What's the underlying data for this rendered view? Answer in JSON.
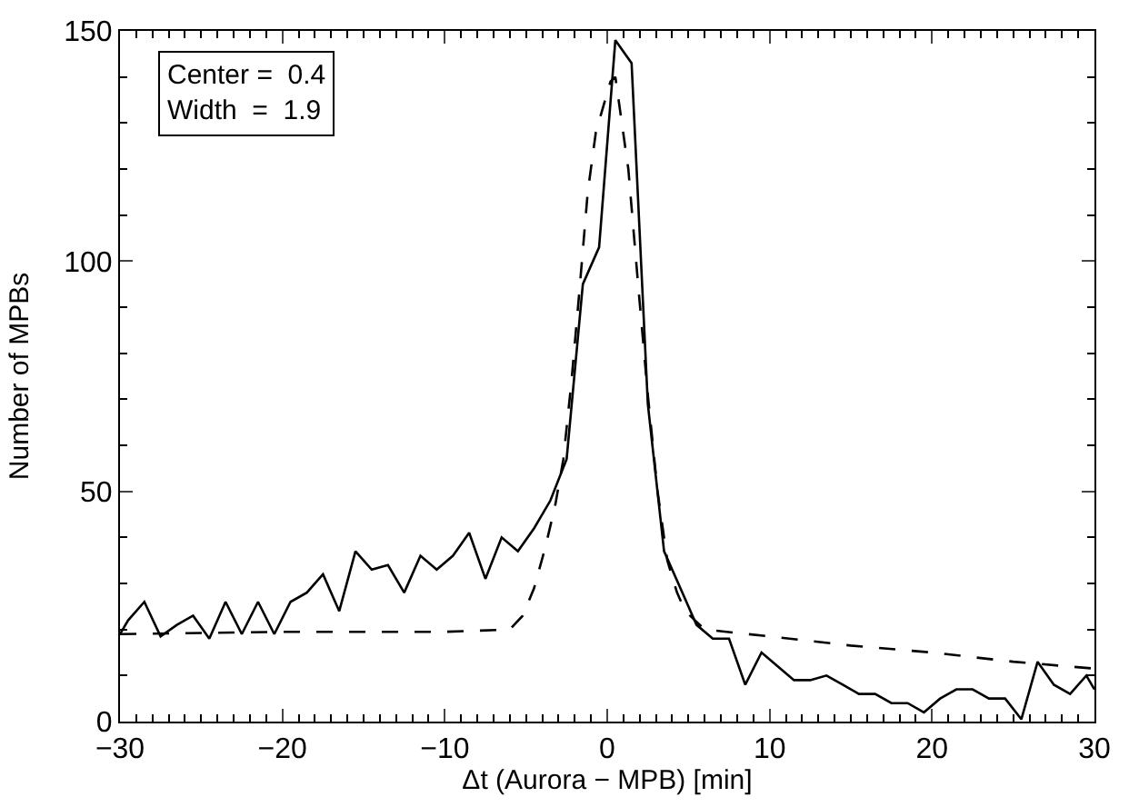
{
  "chart_data": {
    "type": "line",
    "xlabel": "Δt (Aurora − MPB) [min]",
    "ylabel": "Number of MPBs",
    "annotations": [
      "Center =  0.4",
      "Width  =  1.9"
    ],
    "xlim": [
      -30,
      30
    ],
    "xticks": [
      -30,
      -20,
      -10,
      0,
      10,
      20,
      30
    ],
    "ylim": [
      0,
      150
    ],
    "yticks": [
      0,
      50,
      100,
      150
    ],
    "marker": "none",
    "series": [
      {
        "color": "#000000",
        "line_style": "solid",
        "x": [
          -30,
          -29.5,
          -28.5,
          -27.5,
          -26.5,
          -25.5,
          -24.5,
          -23.5,
          -22.5,
          -21.5,
          -20.5,
          -19.5,
          -18.5,
          -17.5,
          -16.5,
          -15.5,
          -14.5,
          -13.5,
          -12.5,
          -11.5,
          -10.5,
          -9.5,
          -8.5,
          -7.5,
          -6.5,
          -5.5,
          -4.5,
          -3.5,
          -2.5,
          -1.5,
          -0.5,
          0.5,
          1.5,
          2.5,
          3.5,
          4.5,
          5.5,
          6.5,
          7.5,
          8.5,
          9.5,
          10.5,
          11.5,
          12.5,
          13.5,
          14.5,
          15.5,
          16.5,
          17.5,
          18.5,
          19.5,
          20.5,
          21.5,
          22.5,
          23.5,
          24.5,
          25.5,
          26.5,
          27.5,
          28.5,
          29.5,
          30
        ],
        "values": [
          19,
          22,
          26,
          18.5,
          21,
          23,
          18,
          26,
          19,
          26,
          19,
          26,
          28,
          32,
          24,
          37,
          33,
          34,
          28,
          36,
          33,
          36,
          41,
          31,
          40,
          37,
          42,
          48,
          57,
          95,
          103,
          148,
          143,
          69,
          37,
          29,
          21,
          18,
          18,
          8,
          15,
          12,
          9,
          9,
          10,
          8,
          6,
          6,
          4,
          4,
          2,
          5,
          7,
          7,
          5,
          5,
          0.5,
          13,
          8,
          6,
          10,
          7
        ]
      },
      {
        "color": "#000000",
        "line_style": "dashed",
        "x": [
          -30,
          -20,
          -10,
          -6,
          -5.2,
          -4.5,
          -3.8,
          -3.2,
          -2.7,
          -2.2,
          -1.7,
          -1.2,
          -0.7,
          0.2,
          0.5,
          1.3,
          1.9,
          2.5,
          3.1,
          3.7,
          4.3,
          4.8,
          6,
          10,
          15,
          20,
          25,
          30
        ],
        "values": [
          19,
          19.5,
          19.5,
          20,
          23,
          29,
          38,
          47,
          57,
          74,
          94,
          115,
          128,
          139,
          140,
          120,
          95,
          71,
          50,
          35,
          28,
          24,
          20,
          18.5,
          16.5,
          15,
          13,
          11.5
        ]
      }
    ]
  }
}
